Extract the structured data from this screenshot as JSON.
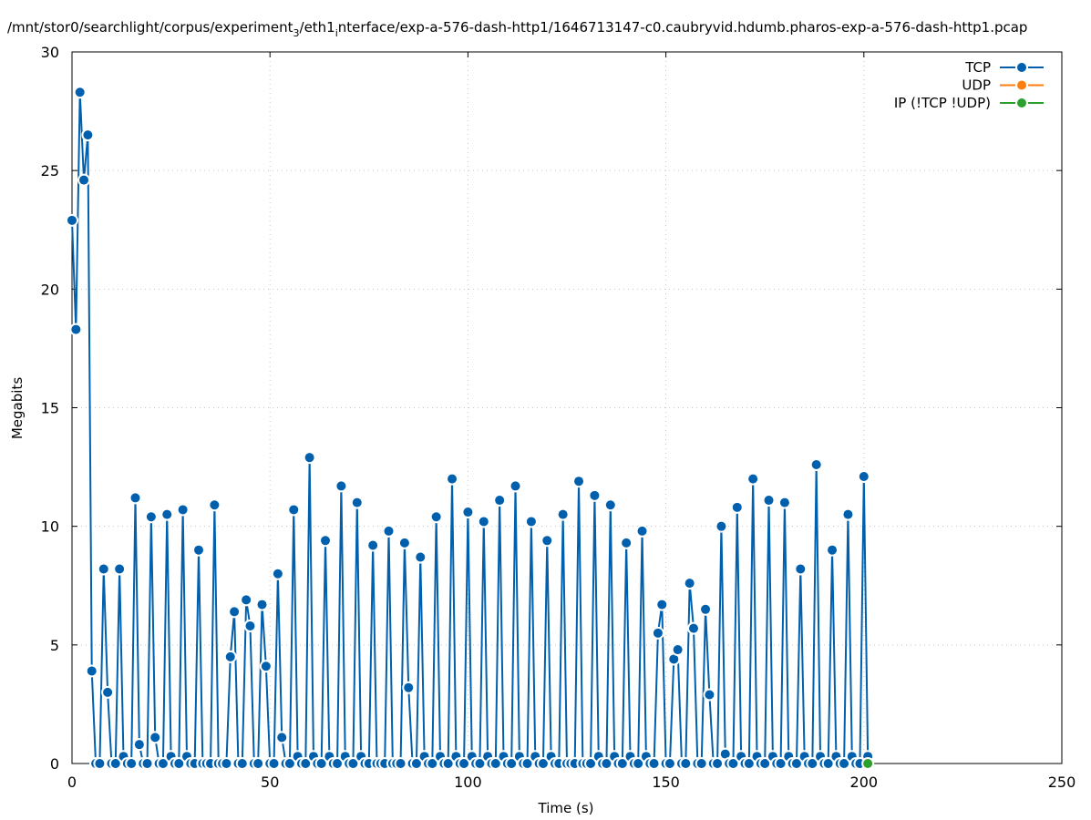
{
  "chart_data": {
    "type": "line",
    "title": "/mnt/stor0/searchlight/corpus/experiment",
    "title_sub": "3",
    "title_mid": "/eth1",
    "title_sub2": "i",
    "title_end": "nterface/exp-a-576-dash-http1/1646713147-c0.caubryvid.hdumb.pharos-exp-a-576-dash-http1.pcap",
    "xlabel": "Time (s)",
    "ylabel": "Megabits",
    "xlim": [
      0,
      250
    ],
    "ylim": [
      0,
      30
    ],
    "xticks": [
      0,
      50,
      100,
      150,
      200,
      250
    ],
    "yticks": [
      0,
      5,
      10,
      15,
      20,
      25,
      30
    ],
    "grid": true,
    "legend_position": "top-right",
    "series": [
      {
        "name": "TCP",
        "color": "#0060ad",
        "points": [
          [
            0,
            22.9
          ],
          [
            1,
            18.3
          ],
          [
            2,
            28.3
          ],
          [
            3,
            24.6
          ],
          [
            4,
            26.5
          ],
          [
            5,
            3.9
          ],
          [
            6,
            0
          ],
          [
            7,
            0
          ],
          [
            8,
            8.2
          ],
          [
            9,
            3.0
          ],
          [
            10,
            0
          ],
          [
            11,
            0
          ],
          [
            12,
            8.2
          ],
          [
            13,
            0.3
          ],
          [
            14,
            0
          ],
          [
            15,
            0
          ],
          [
            16,
            11.2
          ],
          [
            17,
            0.8
          ],
          [
            18,
            0
          ],
          [
            19,
            0
          ],
          [
            20,
            10.4
          ],
          [
            21,
            1.1
          ],
          [
            22,
            0
          ],
          [
            23,
            0
          ],
          [
            24,
            10.5
          ],
          [
            25,
            0.3
          ],
          [
            26,
            0
          ],
          [
            27,
            0
          ],
          [
            28,
            10.7
          ],
          [
            29,
            0.3
          ],
          [
            30,
            0
          ],
          [
            31,
            0
          ],
          [
            32,
            9.0
          ],
          [
            33,
            0
          ],
          [
            34,
            0
          ],
          [
            35,
            0
          ],
          [
            36,
            10.9
          ],
          [
            37,
            0
          ],
          [
            38,
            0
          ],
          [
            39,
            0
          ],
          [
            40,
            4.5
          ],
          [
            41,
            6.4
          ],
          [
            42,
            0
          ],
          [
            43,
            0
          ],
          [
            44,
            6.9
          ],
          [
            45,
            5.8
          ],
          [
            46,
            0
          ],
          [
            47,
            0
          ],
          [
            48,
            6.7
          ],
          [
            49,
            4.1
          ],
          [
            50,
            0
          ],
          [
            51,
            0
          ],
          [
            52,
            8.0
          ],
          [
            53,
            1.1
          ],
          [
            54,
            0
          ],
          [
            55,
            0
          ],
          [
            56,
            10.7
          ],
          [
            57,
            0.3
          ],
          [
            58,
            0
          ],
          [
            59,
            0
          ],
          [
            60,
            12.9
          ],
          [
            61,
            0.3
          ],
          [
            62,
            0
          ],
          [
            63,
            0
          ],
          [
            64,
            9.4
          ],
          [
            65,
            0.3
          ],
          [
            66,
            0
          ],
          [
            67,
            0
          ],
          [
            68,
            11.7
          ],
          [
            69,
            0.3
          ],
          [
            70,
            0
          ],
          [
            71,
            0
          ],
          [
            72,
            11.0
          ],
          [
            73,
            0.3
          ],
          [
            74,
            0
          ],
          [
            75,
            0
          ],
          [
            76,
            9.2
          ],
          [
            77,
            0
          ],
          [
            78,
            0
          ],
          [
            79,
            0
          ],
          [
            80,
            9.8
          ],
          [
            81,
            0
          ],
          [
            82,
            0
          ],
          [
            83,
            0
          ],
          [
            84,
            9.3
          ],
          [
            85,
            3.2
          ],
          [
            86,
            0
          ],
          [
            87,
            0
          ],
          [
            88,
            8.7
          ],
          [
            89,
            0.3
          ],
          [
            90,
            0
          ],
          [
            91,
            0
          ],
          [
            92,
            10.4
          ],
          [
            93,
            0.3
          ],
          [
            94,
            0
          ],
          [
            95,
            0
          ],
          [
            96,
            12.0
          ],
          [
            97,
            0.3
          ],
          [
            98,
            0
          ],
          [
            99,
            0
          ],
          [
            100,
            10.6
          ],
          [
            101,
            0.3
          ],
          [
            102,
            0
          ],
          [
            103,
            0
          ],
          [
            104,
            10.2
          ],
          [
            105,
            0.3
          ],
          [
            106,
            0
          ],
          [
            107,
            0
          ],
          [
            108,
            11.1
          ],
          [
            109,
            0.3
          ],
          [
            110,
            0
          ],
          [
            111,
            0
          ],
          [
            112,
            11.7
          ],
          [
            113,
            0.3
          ],
          [
            114,
            0
          ],
          [
            115,
            0
          ],
          [
            116,
            10.2
          ],
          [
            117,
            0.3
          ],
          [
            118,
            0
          ],
          [
            119,
            0
          ],
          [
            120,
            9.4
          ],
          [
            121,
            0.3
          ],
          [
            122,
            0
          ],
          [
            123,
            0
          ],
          [
            124,
            10.5
          ],
          [
            125,
            0
          ],
          [
            126,
            0
          ],
          [
            127,
            0
          ],
          [
            128,
            11.9
          ],
          [
            129,
            0
          ],
          [
            130,
            0
          ],
          [
            131,
            0
          ],
          [
            132,
            11.3
          ],
          [
            133,
            0.3
          ],
          [
            134,
            0
          ],
          [
            135,
            0
          ],
          [
            136,
            10.9
          ],
          [
            137,
            0.3
          ],
          [
            138,
            0
          ],
          [
            139,
            0
          ],
          [
            140,
            9.3
          ],
          [
            141,
            0.3
          ],
          [
            142,
            0
          ],
          [
            143,
            0
          ],
          [
            144,
            9.8
          ],
          [
            145,
            0.3
          ],
          [
            146,
            0
          ],
          [
            147,
            0
          ],
          [
            148,
            5.5
          ],
          [
            149,
            6.7
          ],
          [
            150,
            0
          ],
          [
            151,
            0
          ],
          [
            152,
            4.4
          ],
          [
            153,
            4.8
          ],
          [
            154,
            0
          ],
          [
            155,
            0
          ],
          [
            156,
            7.6
          ],
          [
            157,
            5.7
          ],
          [
            158,
            0
          ],
          [
            159,
            0
          ],
          [
            160,
            6.5
          ],
          [
            161,
            2.9
          ],
          [
            162,
            0
          ],
          [
            163,
            0
          ],
          [
            164,
            10.0
          ],
          [
            165,
            0.4
          ],
          [
            166,
            0
          ],
          [
            167,
            0
          ],
          [
            168,
            10.8
          ],
          [
            169,
            0.3
          ],
          [
            170,
            0
          ],
          [
            171,
            0
          ],
          [
            172,
            12.0
          ],
          [
            173,
            0.3
          ],
          [
            174,
            0
          ],
          [
            175,
            0
          ],
          [
            176,
            11.1
          ],
          [
            177,
            0.3
          ],
          [
            178,
            0
          ],
          [
            179,
            0
          ],
          [
            180,
            11.0
          ],
          [
            181,
            0.3
          ],
          [
            182,
            0
          ],
          [
            183,
            0
          ],
          [
            184,
            8.2
          ],
          [
            185,
            0.3
          ],
          [
            186,
            0
          ],
          [
            187,
            0
          ],
          [
            188,
            12.6
          ],
          [
            189,
            0.3
          ],
          [
            190,
            0
          ],
          [
            191,
            0
          ],
          [
            192,
            9.0
          ],
          [
            193,
            0.3
          ],
          [
            194,
            0
          ],
          [
            195,
            0
          ],
          [
            196,
            10.5
          ],
          [
            197,
            0.3
          ],
          [
            198,
            0
          ],
          [
            199,
            0
          ],
          [
            200,
            12.1
          ],
          [
            201,
            0.3
          ]
        ]
      },
      {
        "name": "UDP",
        "color": "#ff7f0e",
        "points": []
      },
      {
        "name": "IP (!TCP  !UDP)",
        "color": "#2ca02c",
        "points": [
          [
            201,
            0
          ]
        ]
      }
    ]
  }
}
